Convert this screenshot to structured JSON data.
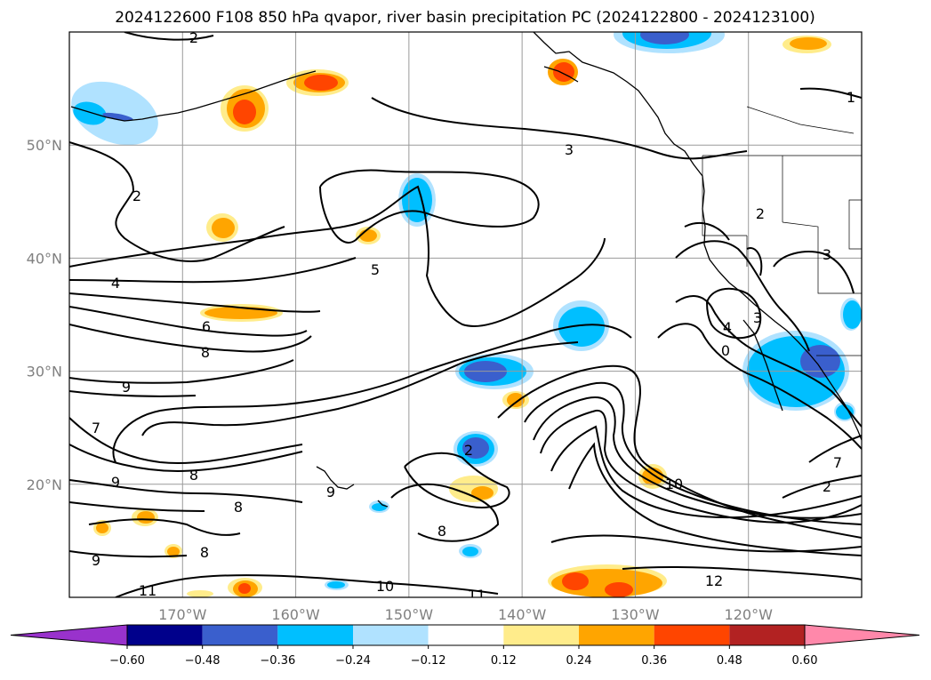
{
  "chart_data": {
    "type": "contour_map",
    "title": "2024122600 F108 850 hPa qvapor, river basin precipitation PC (2024122800 - 2024123100)",
    "lon_range": [
      -180,
      -110
    ],
    "lat_range": [
      10,
      60
    ],
    "x_ticks": [
      "170°W",
      "160°W",
      "150°W",
      "140°W",
      "130°W",
      "120°W"
    ],
    "x_tick_values": [
      -170,
      -160,
      -150,
      -140,
      -130,
      -120
    ],
    "y_ticks": [
      "20°N",
      "30°N",
      "40°N",
      "50°N"
    ],
    "y_tick_values": [
      20,
      30,
      40,
      50
    ],
    "grid": true,
    "contour_field": "850 hPa qvapor",
    "contour_labels": [
      "2",
      "3",
      "2",
      "5",
      "4",
      "6",
      "8",
      "9",
      "7",
      "9",
      "8",
      "8",
      "8",
      "9",
      "11",
      "10",
      "11",
      "12",
      "10",
      "7",
      "2",
      "1",
      "2",
      "3",
      "3",
      "4",
      "0",
      "2",
      "9",
      "8"
    ],
    "filled_field": "river basin precipitation PC",
    "colorbar": {
      "orientation": "horizontal",
      "extend": "both",
      "boundaries": [
        -0.6,
        -0.48,
        -0.36,
        -0.24,
        -0.12,
        0.12,
        0.24,
        0.36,
        0.48,
        0.6
      ],
      "tick_labels": [
        "−0.60",
        "−0.48",
        "−0.36",
        "−0.24",
        "−0.12",
        "0.12",
        "0.24",
        "0.36",
        "0.48",
        "0.60"
      ],
      "colors": [
        "#9932cc",
        "#00008b",
        "#3a5fcd",
        "#00bfff",
        "#b0e2ff",
        "#ffffff",
        "#ffec8b",
        "#ffa500",
        "#ff4500",
        "#b22222",
        "#ff88aa"
      ]
    }
  }
}
